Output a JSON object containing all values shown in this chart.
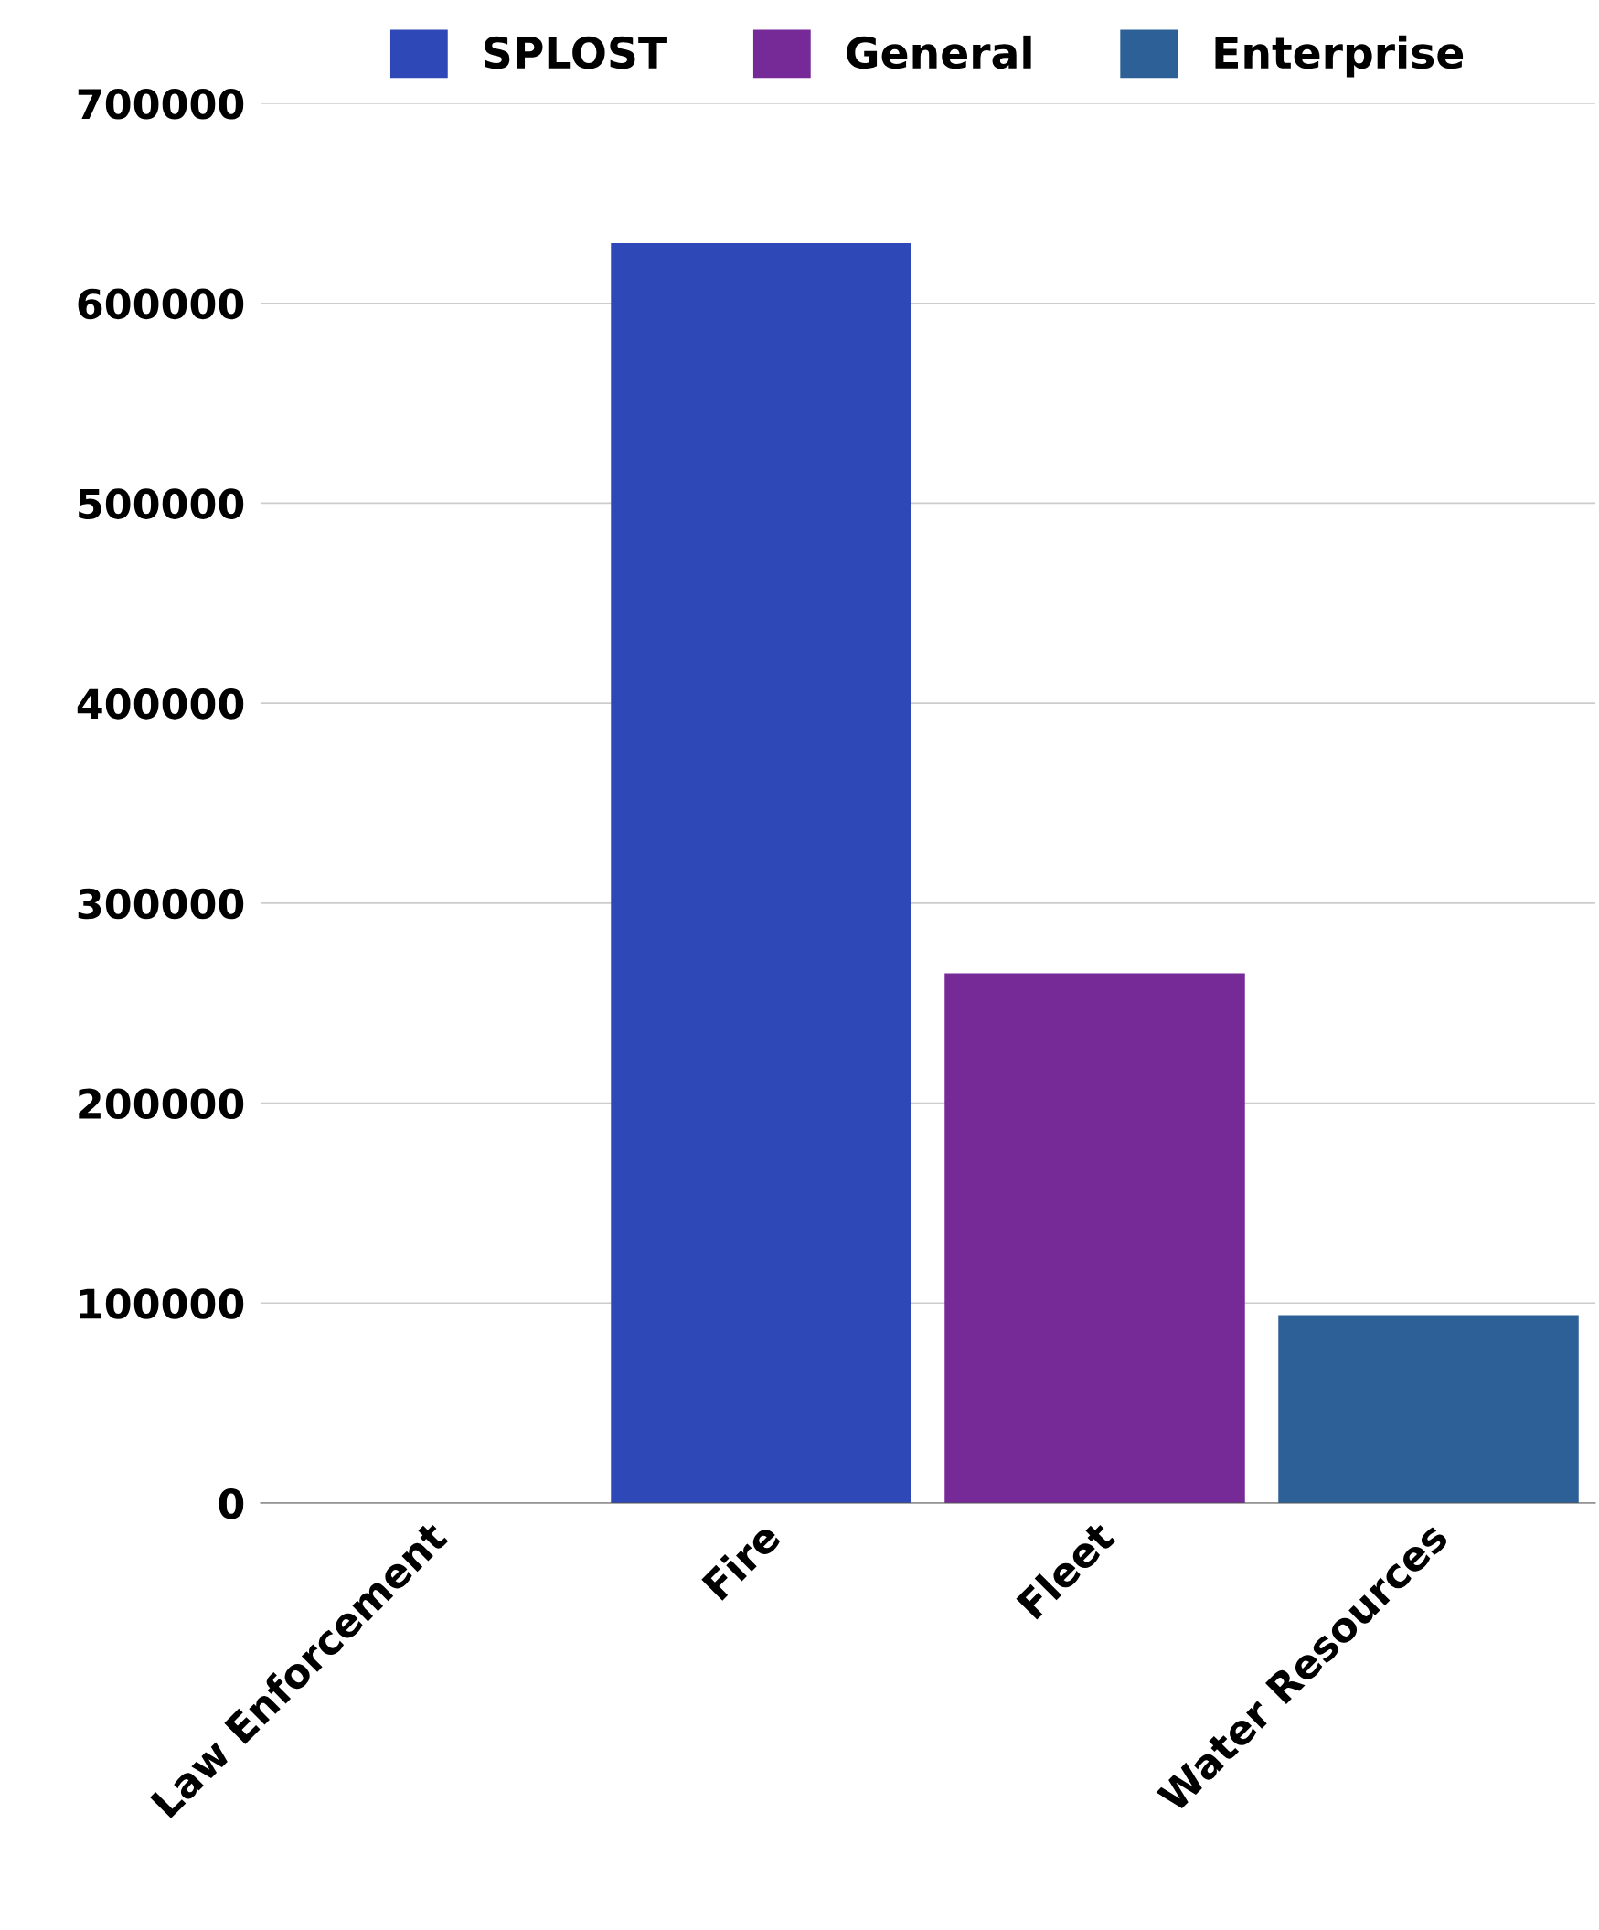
{
  "chart_data": {
    "type": "bar",
    "categories": [
      "Law Enforcement",
      "Fire",
      "Fleet",
      "Water Resources"
    ],
    "series": [
      {
        "name": "SPLOST",
        "color": "#2e48b8",
        "values": [
          0,
          630000,
          0,
          0
        ]
      },
      {
        "name": "General",
        "color": "#762a98",
        "values": [
          0,
          0,
          265000,
          0
        ]
      },
      {
        "name": "Enterprise",
        "color": "#2e6098",
        "values": [
          0,
          0,
          0,
          94000
        ]
      }
    ],
    "stacked": true,
    "ylim": [
      0,
      700000
    ],
    "yticks": [
      0,
      100000,
      200000,
      300000,
      400000,
      500000,
      600000,
      700000
    ],
    "grid": "y",
    "legend": "top"
  }
}
